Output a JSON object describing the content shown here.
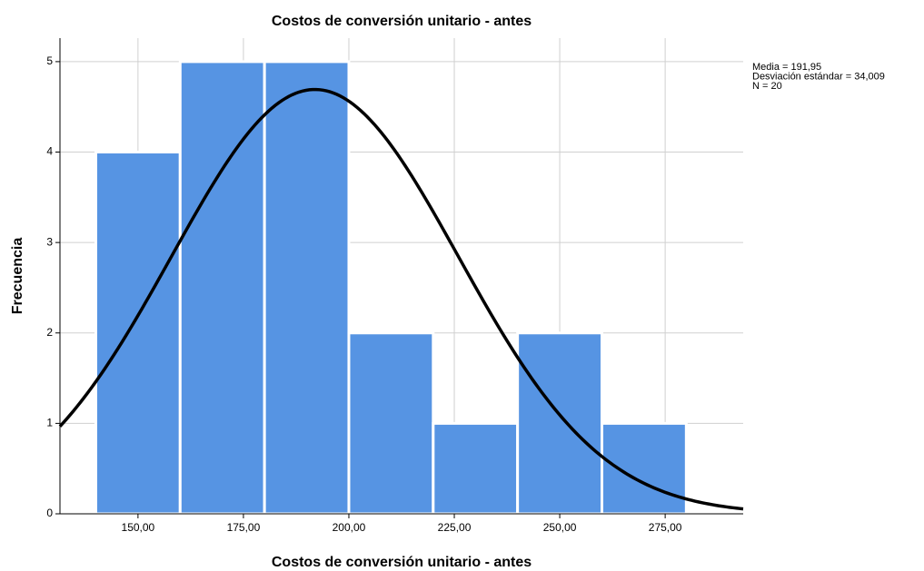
{
  "chart_data": {
    "type": "histogram",
    "title": "Costos de conversión unitario - antes",
    "xlabel": "Costos de conversión unitario - antes",
    "ylabel": "Frecuencia",
    "bins": [
      140,
      160,
      180,
      200,
      220,
      240,
      260,
      280
    ],
    "counts": [
      4,
      5,
      5,
      2,
      1,
      2,
      1
    ],
    "color": "#5694e3",
    "curve_color": "#000000",
    "stats": [
      {
        "value": 191.95,
        "label": "Media = 191,95"
      },
      {
        "value": 34.009,
        "label": "Desviación estándar = 34,009"
      },
      {
        "value": 20,
        "label": "N = 20"
      }
    ],
    "xlim": [
      131.5,
      293.5
    ],
    "ylim": [
      0,
      5.26
    ],
    "xticks": [
      {
        "value": 150,
        "label": "150,00"
      },
      {
        "value": 175,
        "label": "175,00"
      },
      {
        "value": 200,
        "label": "200,00"
      },
      {
        "value": 225,
        "label": "225,00"
      },
      {
        "value": 250,
        "label": "250,00"
      },
      {
        "value": 275,
        "label": "275,00"
      }
    ],
    "yticks": [
      0,
      1,
      2,
      3,
      4,
      5
    ],
    "grid": true
  }
}
